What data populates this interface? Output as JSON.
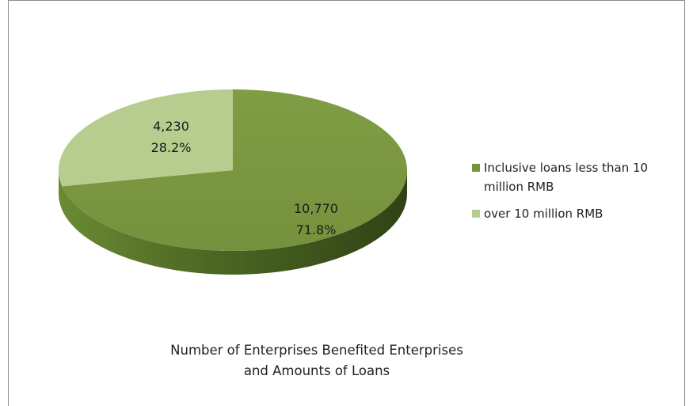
{
  "chart_data": {
    "type": "pie",
    "title_lines": [
      "Number of Enterprises Benefited Enterprises",
      "and Amounts of Loans"
    ],
    "slices": [
      {
        "name": "Inclusive loans less than 10 million RMB",
        "value": 10770,
        "value_label": "10,770",
        "percent_label": "71.8%",
        "color": "#77933c"
      },
      {
        "name": "over 10 million RMB",
        "value": 4230,
        "value_label": "4,230",
        "percent_label": "28.2%",
        "color": "#b7cd8f"
      }
    ],
    "legend_position": "right",
    "three_d": true
  },
  "legend": {
    "items": [
      {
        "line1": "Inclusive loans less than 10",
        "line2": "million RMB",
        "color": "#77933c"
      },
      {
        "line1": "over 10 million RMB",
        "line2": "",
        "color": "#b7cd8f"
      }
    ]
  }
}
